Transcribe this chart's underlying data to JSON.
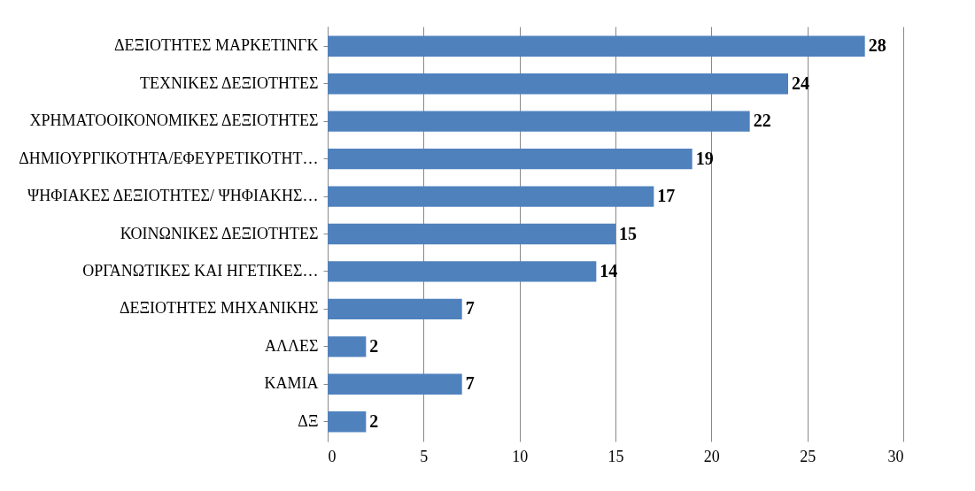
{
  "chart_data": {
    "type": "bar",
    "orientation": "horizontal",
    "categories": [
      "ΔΕΞΙΟΤΗΤΕΣ ΜΑΡΚΕΤΙΝΓΚ",
      "ΤΕΧΝΙΚΕΣ ΔΕΞΙΟΤΗΤΕΣ",
      "ΧΡΗΜΑΤΟΟΙΚΟΝΟΜΙΚΕΣ ΔΕΞΙΟΤΗΤΕΣ",
      "ΔΗΜΙΟΥΡΓΙΚΟΤΗΤΑ/ΕΦΕΥΡΕΤΙΚΟΤΗΤ…",
      "ΨΗΦΙΑΚΕΣ ΔΕΞΙΟΤΗΤΕΣ/ ΨΗΦΙΑΚΗΣ…",
      "ΚΟΙΝΩΝΙΚΕΣ ΔΕΞΙΟΤΗΤΕΣ",
      "ΟΡΓΑΝΩΤΙΚΕΣ ΚΑΙ ΗΓΕΤΙΚΕΣ…",
      "ΔΕΞΙΟΤΗΤΕΣ ΜΗΧΑΝΙΚΗΣ",
      "ΑΛΛΕΣ",
      "ΚΑΜΙΑ",
      "ΔΞ"
    ],
    "values": [
      28,
      24,
      22,
      19,
      17,
      15,
      14,
      7,
      2,
      7,
      2
    ],
    "color": "#4f81bd",
    "xlim": [
      0,
      30
    ],
    "xticks": [
      0,
      5,
      10,
      15,
      20,
      25,
      30
    ],
    "grid": "x",
    "data_labels": true
  }
}
